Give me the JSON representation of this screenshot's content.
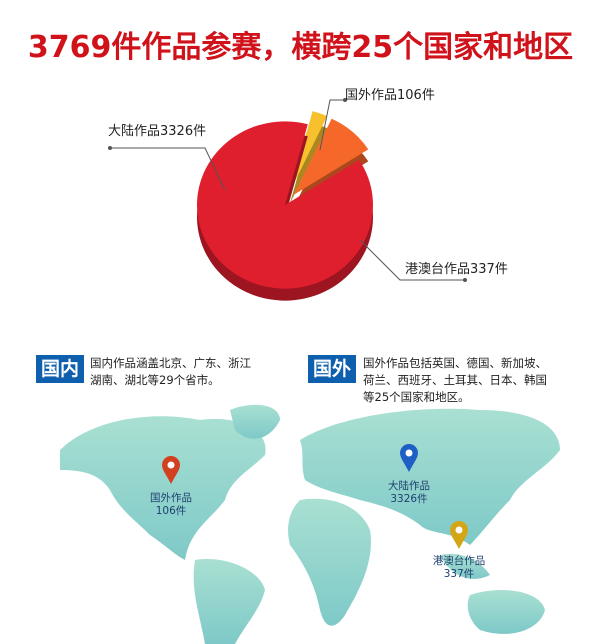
{
  "title": "3769件作品参赛，横跨25个国家和地区",
  "chart_data": {
    "type": "pie",
    "title": "3769件作品参赛，横跨25个国家和地区",
    "slices": [
      {
        "label": "大陆作品3326件",
        "category": "大陆作品",
        "value": 3326,
        "color": "#e01f2e"
      },
      {
        "label": "国外作品106件",
        "category": "国外作品",
        "value": 106,
        "color": "#f7c12e",
        "exploded": true
      },
      {
        "label": "港澳台作品337件",
        "category": "港澳台作品",
        "value": 337,
        "color": "#f6682a",
        "exploded": true
      }
    ],
    "style": "3d"
  },
  "domestic": {
    "badge": "国内",
    "lines": [
      "国内作品涵盖北京、广东、浙江",
      "湖南、湖北等29个省市。"
    ]
  },
  "foreign": {
    "badge": "国外",
    "lines": [
      "国外作品包括英国、德国、新加坡、",
      "荷兰、西班牙、土耳其、日本、韩国",
      "等25个国家和地区。"
    ]
  },
  "map": {
    "color": "#8fd3c8",
    "pins": [
      {
        "line1": "国外作品",
        "line2": "106件",
        "color": "#d2401f"
      },
      {
        "line1": "大陆作品",
        "line2": "3326件",
        "color": "#1d5fc4"
      },
      {
        "line1": "港澳台作品",
        "line2": "337件",
        "color": "#d4a516"
      }
    ]
  }
}
